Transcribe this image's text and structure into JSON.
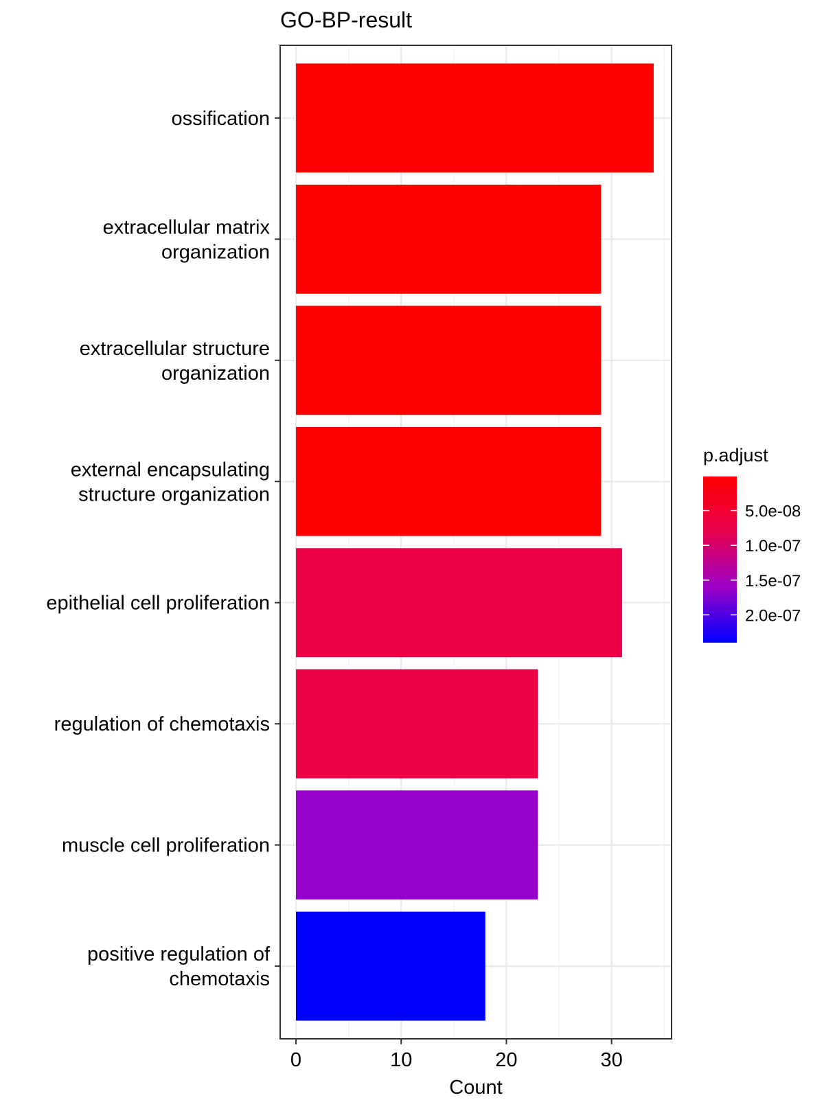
{
  "chart_data": {
    "type": "bar",
    "orientation": "horizontal",
    "title": "GO-BP-result",
    "xlabel": "Count",
    "ylabel": "",
    "xlim": [
      -1.5,
      35.7
    ],
    "xticks": [
      0,
      10,
      20,
      30
    ],
    "xtick_labels": [
      "0",
      "10",
      "20",
      "30"
    ],
    "grid": true,
    "categories": [
      [
        "ossification"
      ],
      [
        "extracellular matrix",
        "organization"
      ],
      [
        "extracellular structure",
        "organization"
      ],
      [
        "external encapsulating",
        "structure organization"
      ],
      [
        "epithelial cell proliferation"
      ],
      [
        "regulation of chemotaxis"
      ],
      [
        "muscle cell proliferation"
      ],
      [
        "positive regulation of",
        "chemotaxis"
      ]
    ],
    "values": [
      34,
      29,
      29,
      29,
      31,
      23,
      23,
      18
    ],
    "p_adjust": [
      1e-09,
      2e-09,
      2e-09,
      3e-09,
      7.5e-08,
      7.5e-08,
      1.6e-07,
      2.4e-07
    ],
    "colors": [
      "#FF0000",
      "#FF0000",
      "#FF0000",
      "#FF0000",
      "#EE0048",
      "#EE0048",
      "#9400CC",
      "#0000FF"
    ],
    "legend": {
      "title": "p.adjust",
      "position": "right",
      "gradient": [
        "#FF0000",
        "#E8004E",
        "#9B00C8",
        "#0000FF"
      ],
      "range": [
        1e-09,
        2.4e-07
      ],
      "tick_values": [
        5e-08,
        1e-07,
        1.5e-07,
        2e-07
      ],
      "tick_labels": [
        "5.0e-08",
        "1.0e-07",
        "1.5e-07",
        "2.0e-07"
      ]
    }
  }
}
